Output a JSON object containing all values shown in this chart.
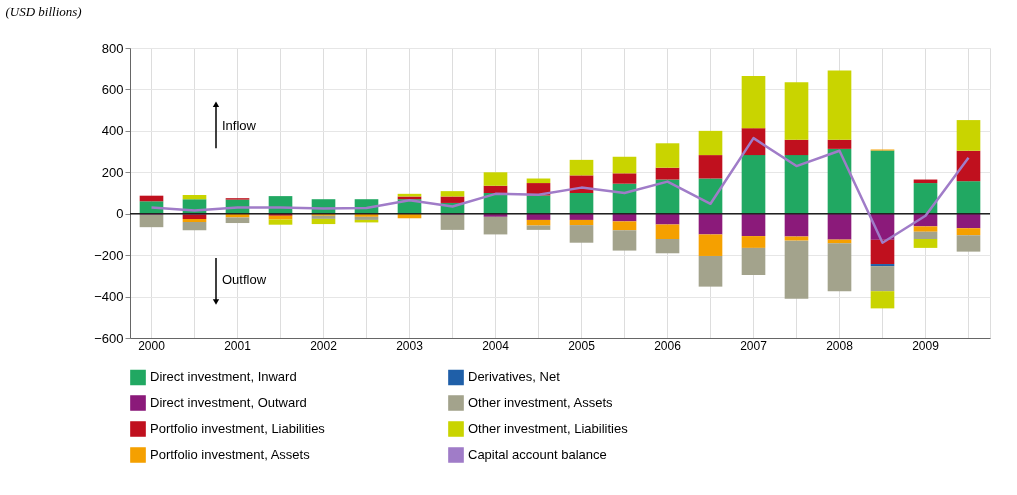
{
  "chart_data": {
    "type": "bar",
    "stacked": true,
    "ylabel": "(USD billions)",
    "categories": [
      "2000",
      null,
      "2001",
      null,
      "2002",
      null,
      "2003",
      null,
      "2004",
      null,
      "2005",
      null,
      "2006",
      null,
      "2007",
      null,
      "2008",
      null,
      "2009",
      null
    ],
    "ylim": [
      -600,
      800
    ],
    "yticks": [
      -600,
      -400,
      -200,
      0,
      200,
      400,
      600,
      800
    ],
    "grid": true,
    "legend": "bottom",
    "annotations": [
      "Inflow",
      "Outflow"
    ],
    "series": [
      {
        "name": "Direct investment, Inward",
        "color": "#21a862",
        "values": [
          60,
          70,
          68,
          85,
          70,
          70,
          70,
          52,
          100,
          88,
          100,
          145,
          165,
          170,
          283,
          283,
          313,
          305,
          148,
          157
        ]
      },
      {
        "name": "Direct investment, Outward",
        "color": "#8b1a7a",
        "values": [
          -5,
          -5,
          0,
          0,
          0,
          0,
          0,
          -5,
          -15,
          -30,
          -30,
          -37,
          -52,
          -100,
          -108,
          -110,
          -125,
          -126,
          -61,
          -70
        ]
      },
      {
        "name": "Portfolio investment, Liabilities",
        "color": "#c0101e",
        "values": [
          27,
          -20,
          7,
          -10,
          0,
          0,
          13,
          31,
          35,
          60,
          85,
          50,
          57,
          113,
          130,
          74,
          44,
          -117,
          17,
          147
        ]
      },
      {
        "name": "Portfolio investment, Assets",
        "color": "#f5a000",
        "values": [
          0,
          -15,
          -18,
          -18,
          -10,
          -15,
          -22,
          0,
          0,
          -27,
          -25,
          -43,
          -70,
          -104,
          -57,
          -20,
          -18,
          5,
          -26,
          -34
        ]
      },
      {
        "name": "Derivatives, Net",
        "color": "#1f5fa8",
        "values": [
          0,
          0,
          0,
          0,
          0,
          0,
          0,
          0,
          0,
          0,
          0,
          0,
          0,
          0,
          0,
          0,
          0,
          -10,
          0,
          0
        ]
      },
      {
        "name": "Other investment, Assets",
        "color": "#a3a38c",
        "values": [
          -60,
          -40,
          -27,
          0,
          -15,
          -15,
          0,
          -73,
          -85,
          -21,
          -85,
          -98,
          -69,
          -148,
          -131,
          -280,
          -231,
          -121,
          -35,
          -79
        ]
      },
      {
        "name": "Other investment, Liabilities",
        "color": "#c9d400",
        "values": [
          0,
          20,
          0,
          -25,
          -25,
          -12,
          13,
          26,
          65,
          22,
          75,
          80,
          118,
          117,
          252,
          278,
          334,
          -83,
          -43,
          148
        ]
      },
      {
        "name": "Capital account balance",
        "type": "line",
        "color": "#a07cc8",
        "marker": "none",
        "values": [
          30,
          15,
          30,
          30,
          25,
          28,
          65,
          35,
          96,
          92,
          126,
          100,
          155,
          48,
          365,
          230,
          304,
          -140,
          -10,
          270
        ]
      }
    ]
  }
}
